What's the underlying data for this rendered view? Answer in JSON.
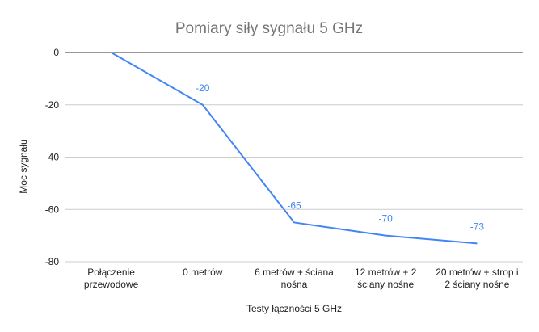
{
  "colors": {
    "series": "#4285f4",
    "grid": "#cccccc",
    "zero_line": "#333333",
    "text": "#222222",
    "title": "#757575"
  },
  "chart_data": {
    "type": "line",
    "title": "Pomiary siły sygnału 5 GHz",
    "xlabel": "Testy łączności 5 GHz",
    "ylabel": "Moc sygnału",
    "ylim": [
      -80,
      0
    ],
    "yticks": [
      0,
      -20,
      -40,
      -60,
      -80
    ],
    "grid": true,
    "legend": "none",
    "categories": [
      [
        "Połączenie",
        "przewodowe"
      ],
      [
        "0 metrów"
      ],
      [
        "6 metrów + ściana",
        "nośna"
      ],
      [
        "12 metrów + 2",
        "ściany nośne"
      ],
      [
        "20 metrów + strop i",
        "2 ściany nośne"
      ]
    ],
    "series": [
      {
        "values": [
          0,
          -20,
          -65,
          -70,
          -73
        ],
        "data_labels": [
          "",
          "-20",
          "-65",
          "-70",
          "-73"
        ]
      }
    ]
  }
}
